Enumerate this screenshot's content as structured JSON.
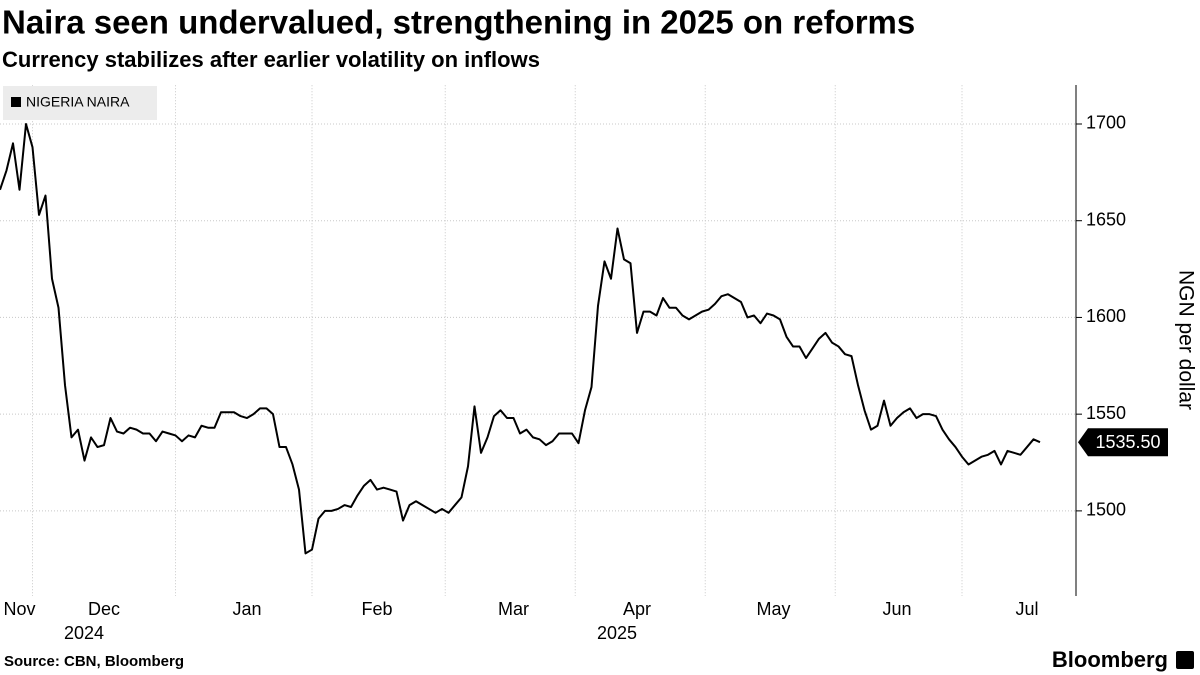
{
  "chart_data": {
    "type": "line",
    "title": "Naira seen undervalued, strengthening in 2025 on reforms",
    "subtitle": "Currency stabilizes after earlier volatility on inflows",
    "y_axis_label": "NGN per dollar",
    "source": "Source: CBN, Bloomberg",
    "brand": "Bloomberg",
    "ylim": [
      1456,
      1720
    ],
    "yticks": [
      1500,
      1550,
      1600,
      1650,
      1700
    ],
    "grid": true,
    "legend": "top-left",
    "categories": [
      null,
      null,
      null,
      "Nov",
      null,
      null,
      null,
      null,
      null,
      null,
      null,
      null,
      null,
      null,
      null,
      null,
      "Dec",
      null,
      null,
      null,
      null,
      null,
      null,
      null,
      null,
      null,
      null,
      null,
      null,
      null,
      null,
      null,
      null,
      null,
      null,
      null,
      null,
      null,
      "Jan",
      null,
      null,
      null,
      null,
      null,
      null,
      null,
      null,
      null,
      null,
      null,
      null,
      null,
      null,
      null,
      null,
      null,
      null,
      null,
      "Feb",
      null,
      null,
      null,
      null,
      null,
      null,
      null,
      null,
      null,
      null,
      null,
      null,
      null,
      null,
      null,
      null,
      null,
      null,
      null,
      null,
      "Mar",
      null,
      null,
      null,
      null,
      null,
      null,
      null,
      null,
      null,
      null,
      null,
      null,
      null,
      null,
      null,
      null,
      null,
      null,
      "Apr",
      null,
      null,
      null,
      null,
      null,
      null,
      null,
      null,
      null,
      null,
      null,
      null,
      null,
      null,
      null,
      null,
      null,
      null,
      null,
      null,
      "May",
      null,
      null,
      null,
      null,
      null,
      null,
      null,
      null,
      null,
      null,
      null,
      null,
      null,
      null,
      null,
      null,
      null,
      null,
      "Jun",
      null,
      null,
      null,
      null,
      null,
      null,
      null,
      null,
      null,
      null,
      null,
      null,
      null,
      null,
      null,
      null,
      null,
      null,
      null,
      "Jul",
      null,
      null
    ],
    "category_years": [
      null,
      null,
      null,
      null,
      null,
      null,
      null,
      null,
      null,
      null,
      null,
      null,
      null,
      null,
      null,
      null,
      "2024",
      null,
      null,
      null,
      null,
      null,
      null,
      null,
      null,
      null,
      null,
      null,
      null,
      null,
      null,
      null,
      null,
      null,
      null,
      null,
      null,
      null,
      null,
      null,
      null,
      null,
      null,
      null,
      null,
      null,
      null,
      null,
      null,
      null,
      null,
      null,
      null,
      null,
      null,
      null,
      null,
      null,
      null,
      null,
      null,
      null,
      null,
      null,
      null,
      null,
      null,
      null,
      null,
      null,
      null,
      null,
      null,
      null,
      null,
      null,
      null,
      null,
      null,
      null,
      null,
      null,
      null,
      null,
      null,
      null,
      null,
      null,
      null,
      null,
      null,
      null,
      null,
      null,
      null,
      null,
      null,
      null,
      "2025",
      null,
      null,
      null,
      null,
      null,
      null,
      null,
      null,
      null,
      null,
      null,
      null,
      null,
      null,
      null,
      null,
      null,
      null,
      null,
      null,
      null,
      null,
      null,
      null,
      null,
      null,
      null,
      null,
      null,
      null,
      null,
      null,
      null,
      null,
      null,
      null,
      null,
      null,
      null,
      null,
      null,
      null,
      null,
      null,
      null,
      null,
      null,
      null,
      null,
      null,
      null,
      null,
      null,
      null,
      null,
      null,
      null,
      null,
      null,
      null,
      null,
      null
    ],
    "series": [
      {
        "name": "NIGERIA NAIRA",
        "color": "#000000",
        "values": [
          1666,
          1676,
          1690,
          1666,
          1700,
          1688,
          1653,
          1663,
          1620,
          1605,
          1565,
          1538,
          1542,
          1526,
          1538,
          1533,
          1534,
          1548,
          1541,
          1540,
          1543,
          1542,
          1540,
          1540,
          1536,
          1541,
          1540,
          1539,
          1536,
          1539,
          1538,
          1544,
          1543,
          1543,
          1551,
          1551,
          1551,
          1549,
          1548,
          1550,
          1553,
          1553,
          1550,
          1533,
          1533,
          1524,
          1511,
          1478,
          1480,
          1496,
          1500,
          1500,
          1501,
          1503,
          1502,
          1508,
          1513,
          1516,
          1511,
          1512,
          1511,
          1510,
          1495,
          1503,
          1505,
          1503,
          1501,
          1499,
          1501,
          1499,
          1503,
          1507,
          1523,
          1554,
          1530,
          1538,
          1549,
          1552,
          1548,
          1548,
          1540,
          1542,
          1538,
          1537,
          1534,
          1536,
          1540,
          1540,
          1540,
          1535,
          1552,
          1564,
          1606,
          1629,
          1620,
          1646,
          1630,
          1628,
          1592,
          1603,
          1603,
          1601,
          1610,
          1605,
          1605,
          1601,
          1599,
          1601,
          1603,
          1604,
          1607,
          1611,
          1612,
          1610,
          1608,
          1600,
          1601,
          1597,
          1602,
          1601,
          1599,
          1590,
          1585,
          1585,
          1579,
          1584,
          1589,
          1592,
          1587,
          1585,
          1581,
          1580,
          1565,
          1552,
          1542,
          1544,
          1557,
          1544,
          1548,
          1551,
          1553,
          1548,
          1550,
          1550,
          1549,
          1542,
          1537,
          1533,
          1528,
          1524,
          1526,
          1528,
          1529,
          1531,
          1524,
          1531,
          1530,
          1529,
          1533,
          1537,
          1535.5
        ],
        "value_labels": [
          null,
          null,
          null,
          null,
          null,
          null,
          null,
          null,
          null,
          null,
          null,
          null,
          null,
          null,
          null,
          null,
          null,
          null,
          null,
          null,
          null,
          null,
          null,
          null,
          null,
          null,
          null,
          null,
          null,
          null,
          null,
          null,
          null,
          null,
          null,
          null,
          null,
          null,
          null,
          null,
          null,
          null,
          null,
          null,
          null,
          null,
          null,
          null,
          null,
          null,
          null,
          null,
          null,
          null,
          null,
          null,
          null,
          null,
          null,
          null,
          null,
          null,
          null,
          null,
          null,
          null,
          null,
          null,
          null,
          null,
          null,
          null,
          null,
          null,
          null,
          null,
          null,
          null,
          null,
          null,
          null,
          null,
          null,
          null,
          null,
          null,
          null,
          null,
          null,
          null,
          null,
          null,
          null,
          null,
          null,
          null,
          null,
          null,
          null,
          null,
          null,
          null,
          null,
          null,
          null,
          null,
          null,
          null,
          null,
          null,
          null,
          null,
          null,
          null,
          null,
          null,
          null,
          null,
          null,
          null,
          null,
          null,
          null,
          null,
          null,
          null,
          null,
          null,
          null,
          null,
          null,
          null,
          null,
          null,
          null,
          null,
          null,
          null,
          null,
          null,
          null,
          null,
          null,
          null,
          null,
          null,
          null,
          null,
          null,
          null,
          null,
          null,
          null,
          null,
          null,
          null,
          null,
          null,
          null,
          null,
          "1535.50"
        ]
      }
    ]
  }
}
